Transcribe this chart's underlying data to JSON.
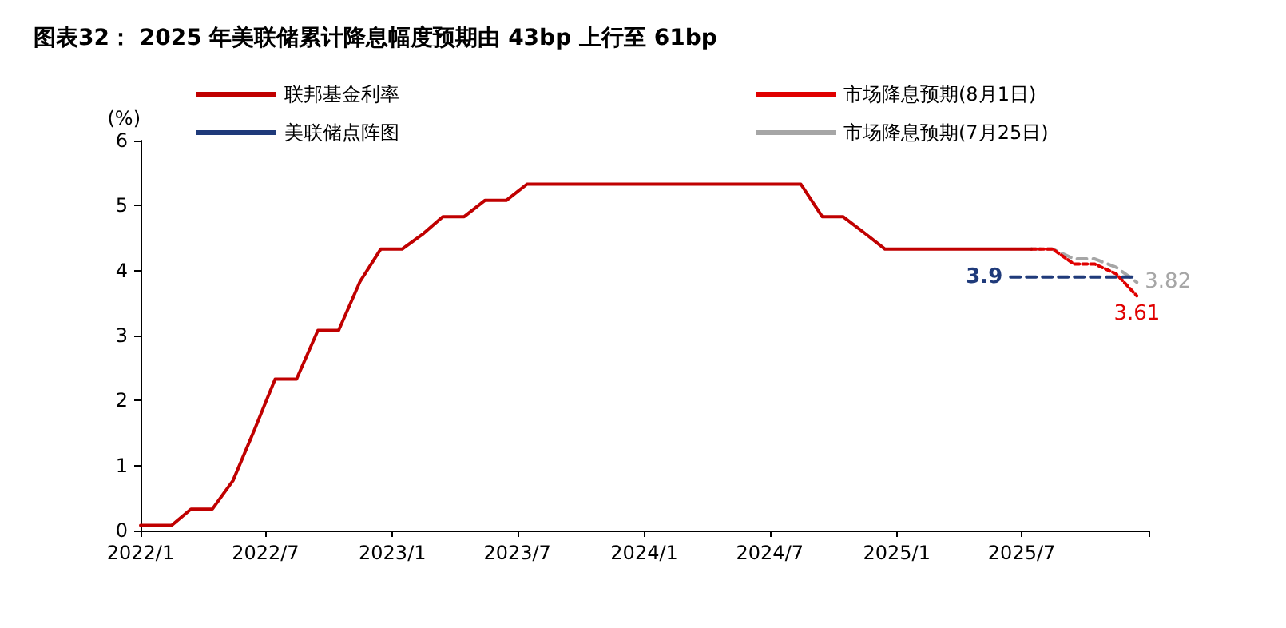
{
  "chart_data": {
    "type": "line",
    "title": "图表32： 2025 年美联储累计降息幅度预期由 43bp 上行至 61bp",
    "ylabel": "(%)",
    "xlim": [
      "2022-01",
      "2026-01"
    ],
    "xticks": [
      {
        "value": "2022-01",
        "label": "2022/1"
      },
      {
        "value": "2022-07",
        "label": "2022/7"
      },
      {
        "value": "2023-01",
        "label": "2023/1"
      },
      {
        "value": "2023-07",
        "label": "2023/7"
      },
      {
        "value": "2024-01",
        "label": "2024/1"
      },
      {
        "value": "2024-07",
        "label": "2024/7"
      },
      {
        "value": "2025-01",
        "label": "2025/1"
      },
      {
        "value": "2025-07",
        "label": "2025/7"
      },
      {
        "value": "2026-01",
        "label": null
      }
    ],
    "ylim": [
      0,
      6
    ],
    "yticks": [
      0,
      1,
      2,
      3,
      4,
      5,
      6
    ],
    "grid": false,
    "legend": "top",
    "marker": "none",
    "series": [
      {
        "name": "联邦基金利率",
        "color": "#c00000",
        "line_style": "solid",
        "x": [
          "2022-01-01",
          "2022-02-15",
          "2022-03-15",
          "2022-04-15",
          "2022-05-15",
          "2022-06-15",
          "2022-07-15",
          "2022-08-15",
          "2022-09-15",
          "2022-10-15",
          "2022-11-15",
          "2022-12-15",
          "2023-01-15",
          "2023-02-15",
          "2023-03-15",
          "2023-04-15",
          "2023-05-15",
          "2023-06-15",
          "2023-07-15",
          "2024-08-15",
          "2024-09-15",
          "2024-10-15",
          "2024-11-15",
          "2024-12-15",
          "2025-07-15"
        ],
        "values": [
          0.08,
          0.08,
          0.33,
          0.33,
          0.77,
          1.55,
          2.33,
          2.33,
          3.08,
          3.08,
          3.83,
          4.33,
          4.33,
          4.57,
          4.83,
          4.83,
          5.08,
          5.08,
          5.33,
          5.33,
          4.83,
          4.83,
          4.58,
          4.33,
          4.33
        ]
      },
      {
        "name": "美联储点阵图",
        "color": "#1f3a7a",
        "line_style": "dashed",
        "x": [
          "2025-06-15",
          "2025-12-15"
        ],
        "values": [
          3.9,
          3.9
        ],
        "value_labels": [
          "3.9",
          null
        ]
      },
      {
        "name": "市场降息预期(8月1日)",
        "color": "#e00000",
        "line_style": "dotted",
        "x": [
          "2025-07-15",
          "2025-08-15",
          "2025-09-15",
          "2025-10-15",
          "2025-11-15",
          "2025-12-15"
        ],
        "values": [
          4.33,
          4.33,
          4.1,
          4.1,
          3.95,
          3.61
        ],
        "value_labels": [
          null,
          null,
          null,
          null,
          null,
          "3.61"
        ]
      },
      {
        "name": "市场降息预期(7月25日)",
        "color": "#a6a6a6",
        "line_style": "dashed",
        "x": [
          "2025-07-15",
          "2025-08-15",
          "2025-09-15",
          "2025-10-15",
          "2025-11-15",
          "2025-12-15"
        ],
        "values": [
          4.33,
          4.33,
          4.18,
          4.18,
          4.05,
          3.82
        ],
        "value_labels": [
          null,
          null,
          null,
          null,
          null,
          "3.82"
        ]
      }
    ]
  }
}
